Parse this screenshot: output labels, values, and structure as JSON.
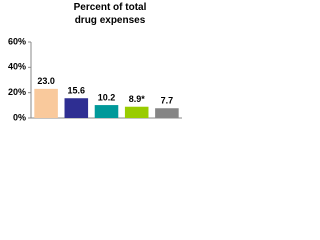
{
  "chart_data": {
    "type": "bar",
    "title": "Percent of total drug expenses",
    "categories": [
      null,
      null,
      null,
      null,
      null
    ],
    "values": [
      23.0,
      15.6,
      10.2,
      8.9,
      7.7
    ],
    "value_labels": [
      "23.0",
      "15.6",
      "10.2",
      "8.9*",
      "7.7"
    ],
    "colors": [
      "#f9c99c",
      "#2e2e92",
      "#00999a",
      "#99cc00",
      "#858585"
    ],
    "ylim": [
      0,
      60
    ],
    "yticks": [
      {
        "value": 0,
        "label": "0%"
      },
      {
        "value": 20,
        "label": "20%"
      },
      {
        "value": 40,
        "label": "40%"
      },
      {
        "value": 60,
        "label": "60%"
      }
    ]
  }
}
